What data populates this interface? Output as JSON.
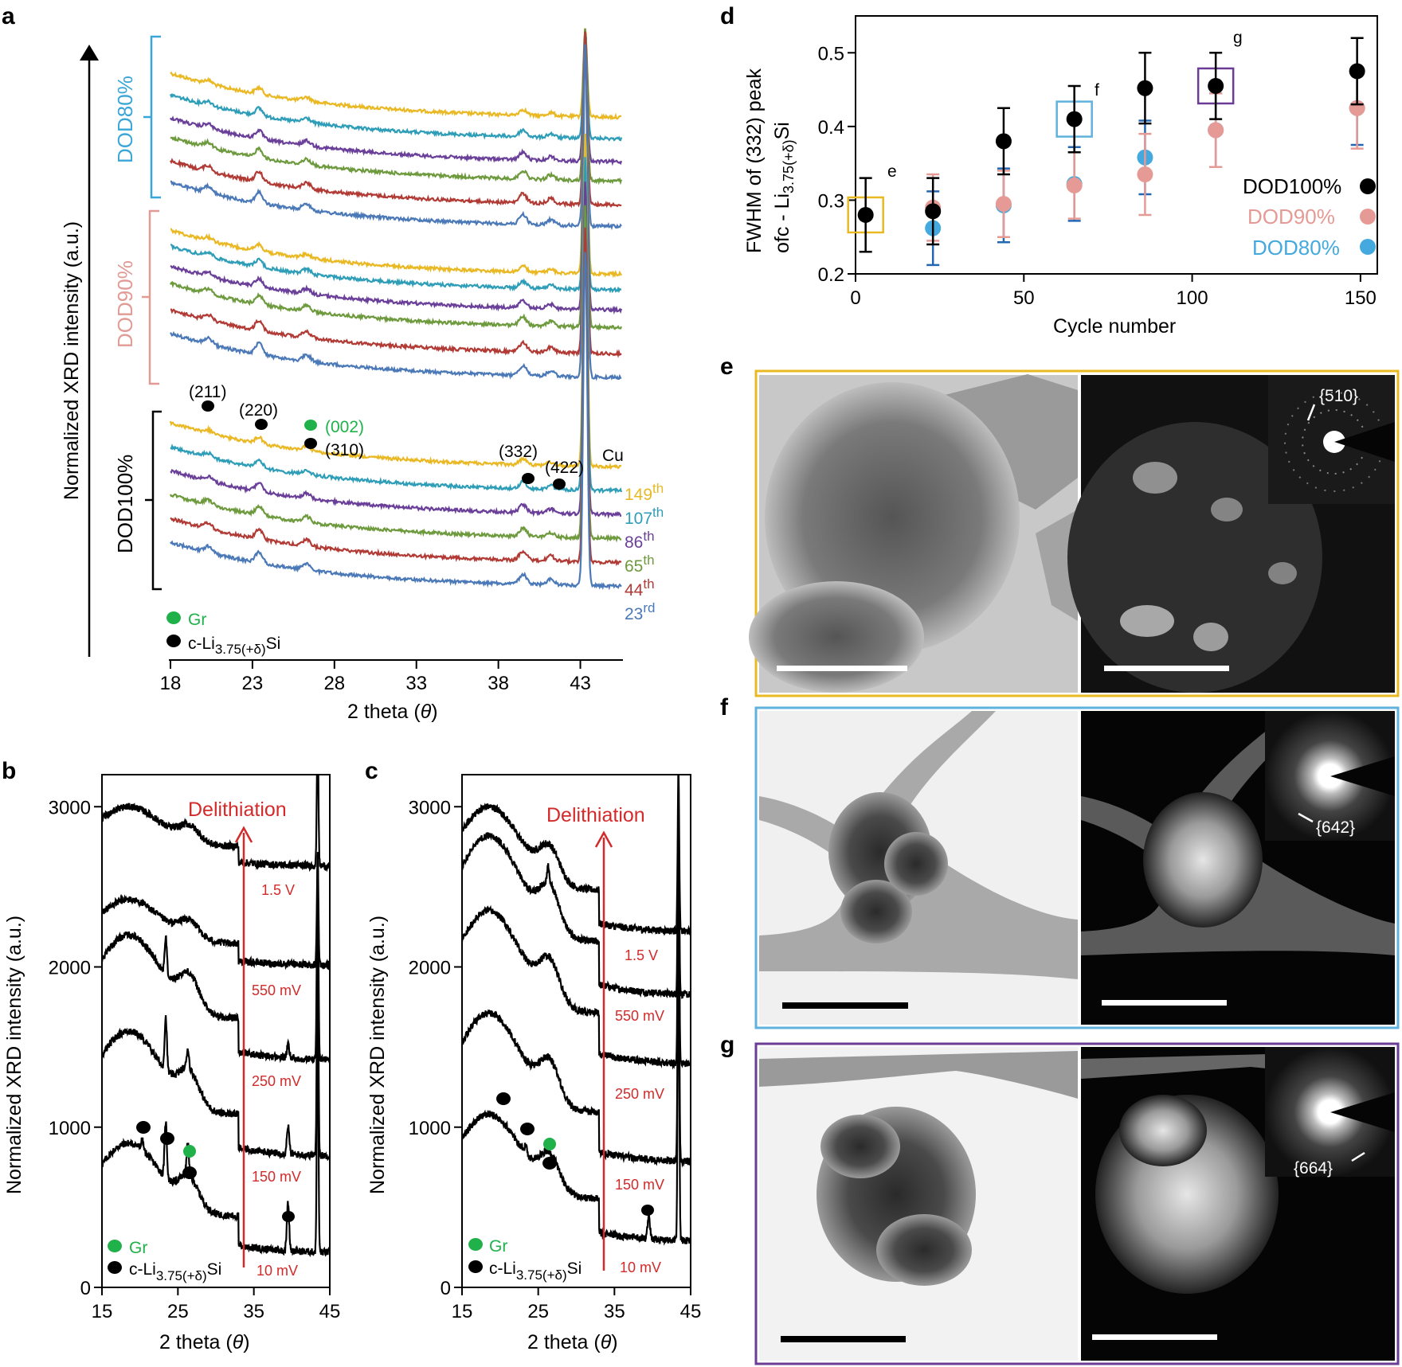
{
  "colors": {
    "yellow": "#e9b823",
    "teal": "#2e9db8",
    "purple": "#6a3f99",
    "green": "#6e9a3e",
    "red": "#b23a35",
    "blue": "#4b79b8",
    "black": "#000000",
    "pink": "#e59a95",
    "sky": "#43a9de",
    "gr_green": "#20b14a",
    "delith_red": "#d32a2a",
    "dod80_bracket": "#3aa6d8",
    "dod90_bracket": "#e29a95",
    "box_e": "#e8b923",
    "box_f": "#5fb2dd",
    "box_g": "#6a3c96",
    "errbar_blue": "#2367b2"
  },
  "panel_labels": {
    "a": "a",
    "b": "b",
    "c": "c",
    "d": "d",
    "e": "e",
    "f": "f",
    "g": "g"
  },
  "panel_a": {
    "ylabel": "Normalized XRD intensity (a.u.)",
    "xlabel_pre": "2 theta (",
    "xlabel_sym": "θ",
    "xlabel_post": ")",
    "bracket_labels": [
      "DOD80%",
      "DOD90%",
      "DOD100%"
    ],
    "peak_labels": [
      "(211)",
      "(220)",
      "(002)",
      "(310)",
      "(332)",
      "(422)",
      "Cu"
    ],
    "cycles": [
      {
        "num": "149",
        "sup": "th"
      },
      {
        "num": "107",
        "sup": "th"
      },
      {
        "num": "86",
        "sup": "th"
      },
      {
        "num": "65",
        "sup": "th"
      },
      {
        "num": "44",
        "sup": "th"
      },
      {
        "num": "23",
        "sup": "rd"
      }
    ],
    "legend": {
      "gr": "Gr",
      "li_prefix": "c-Li",
      "li_sub": "3.75(+δ)",
      "li_suffix": "Si"
    }
  },
  "panel_b": {
    "ylabel": "Normalized XRD intensity (a.u.)",
    "xlabel_pre": "2 theta (",
    "xlabel_sym": "θ",
    "xlabel_post": ")",
    "arrow_label": "Delithiation",
    "voltages": [
      "1.5 V",
      "550 mV",
      "250 mV",
      "150 mV",
      "10 mV"
    ],
    "legend": {
      "gr": "Gr",
      "li_prefix": "c-Li",
      "li_sub": "3.75(+δ)",
      "li_suffix": "Si"
    }
  },
  "panel_c": {
    "ylabel": "Normalized XRD intensity (a.u.)",
    "xlabel_pre": "2 theta (",
    "xlabel_sym": "θ",
    "xlabel_post": ")",
    "arrow_label": "Delithiation",
    "voltages": [
      "1.5 V",
      "550 mV",
      "250 mV",
      "150 mV",
      "10 mV"
    ],
    "legend": {
      "gr": "Gr",
      "li_prefix": "c-Li",
      "li_sub": "3.75(+δ)",
      "li_suffix": "Si"
    }
  },
  "panel_d": {
    "xlabel": "Cycle number",
    "ylabel_line1": "FWHM of (332) peak",
    "ylabel_line2_prefix": "ofc - Li",
    "ylabel_line2_sub": "3.75(+δ)",
    "ylabel_line2_suffix": "Si",
    "box_labels": [
      "e",
      "f",
      "g"
    ],
    "legend": [
      "DOD100%",
      "DOD90%",
      "DOD80%"
    ]
  },
  "micrographs": {
    "e_ring": "{510}",
    "f_ring": "{642}",
    "g_ring": "{664}"
  },
  "chart_data": [
    {
      "type": "line",
      "id": "a",
      "title": "",
      "xlabel": "2 theta (θ)",
      "ylabel": "Normalized XRD intensity (a.u.)",
      "xlim": [
        18,
        45.5
      ],
      "xticks": [
        18,
        23,
        28,
        33,
        38,
        43
      ],
      "series_note": "18 stacked XRD patterns, top to bottom: DOD80% (149,107,86,65,44,23), DOD90% (149,107,86,65,44,23), DOD100% (149,107,86,65,44,23)",
      "peaks_2theta": {
        "211": 20.3,
        "220": 23.4,
        "002_310": 26.3,
        "332": 39.5,
        "422": 41.2,
        "Cu": 43.3
      },
      "series": [
        {
          "name": "DOD80% 149th",
          "color": "yellow"
        },
        {
          "name": "DOD80% 107th",
          "color": "teal"
        },
        {
          "name": "DOD80% 86th",
          "color": "purple"
        },
        {
          "name": "DOD80% 65th",
          "color": "green"
        },
        {
          "name": "DOD80% 44th",
          "color": "red"
        },
        {
          "name": "DOD80% 23rd",
          "color": "blue"
        },
        {
          "name": "DOD90% 149th",
          "color": "yellow"
        },
        {
          "name": "DOD90% 107th",
          "color": "teal"
        },
        {
          "name": "DOD90% 86th",
          "color": "purple"
        },
        {
          "name": "DOD90% 65th",
          "color": "green"
        },
        {
          "name": "DOD90% 44th",
          "color": "red"
        },
        {
          "name": "DOD90% 23rd",
          "color": "blue"
        },
        {
          "name": "DOD100% 149th",
          "color": "yellow"
        },
        {
          "name": "DOD100% 107th",
          "color": "teal"
        },
        {
          "name": "DOD100% 86th",
          "color": "purple"
        },
        {
          "name": "DOD100% 65th",
          "color": "green"
        },
        {
          "name": "DOD100% 44th",
          "color": "red"
        },
        {
          "name": "DOD100% 23rd",
          "color": "blue"
        }
      ]
    },
    {
      "type": "line",
      "id": "b",
      "xlabel": "2 theta (θ)",
      "ylabel": "Normalized XRD intensity (a.u.)",
      "xlim": [
        15,
        45
      ],
      "ylim": [
        0,
        3200
      ],
      "xticks": [
        15,
        25,
        35,
        45
      ],
      "yticks": [
        0,
        1000,
        2000,
        3000
      ],
      "series": [
        {
          "name": "10 mV",
          "base": 200,
          "hump": 700,
          "sharp_peaks": [
            [
              20.3,
              60
            ],
            [
              23.4,
              350
            ],
            [
              26.3,
              200
            ],
            [
              39.5,
              300
            ],
            [
              43.4,
              1600
            ]
          ]
        },
        {
          "name": "150 mV",
          "base": 800,
          "hump": 800,
          "sharp_peaks": [
            [
              23.4,
              330
            ],
            [
              26.3,
              120
            ],
            [
              39.5,
              180
            ],
            [
              43.4,
              1500
            ]
          ]
        },
        {
          "name": "250 mV",
          "base": 1400,
          "hump": 800,
          "sharp_peaks": [
            [
              23.4,
              230
            ],
            [
              39.5,
              80
            ],
            [
              43.4,
              1300
            ]
          ]
        },
        {
          "name": "550 mV",
          "base": 2000,
          "hump": 420,
          "sharp_peaks": [
            [
              43.4,
              700
            ]
          ]
        },
        {
          "name": "1.5 V",
          "base": 2620,
          "hump": 380,
          "sharp_peaks": [
            [
              43.4,
              900
            ]
          ]
        }
      ]
    },
    {
      "type": "line",
      "id": "c",
      "xlabel": "2 theta (θ)",
      "ylabel": "Normalized XRD intensity (a.u.)",
      "xlim": [
        15,
        45
      ],
      "ylim": [
        0,
        3200
      ],
      "xticks": [
        15,
        25,
        35,
        45
      ],
      "yticks": [
        0,
        1000,
        2000,
        3000
      ],
      "series": [
        {
          "name": "10 mV",
          "base": 270,
          "hump": 810,
          "sharp_peaks": [
            [
              23.4,
              60
            ],
            [
              39.5,
              150
            ],
            [
              43.4,
              2100
            ]
          ]
        },
        {
          "name": "150 mV",
          "base": 760,
          "hump": 950,
          "sharp_peaks": [
            [
              43.4,
              1800
            ]
          ]
        },
        {
          "name": "250 mV",
          "base": 1370,
          "hump": 980,
          "sharp_peaks": [
            [
              43.4,
              1500
            ]
          ]
        },
        {
          "name": "550 mV",
          "base": 1800,
          "hump": 1020,
          "sharp_peaks": [
            [
              26.3,
              100
            ],
            [
              43.4,
              1200
            ]
          ]
        },
        {
          "name": "1.5 V",
          "base": 2200,
          "hump": 800,
          "sharp_peaks": [
            [
              43.4,
              1000
            ]
          ]
        }
      ]
    },
    {
      "type": "scatter",
      "id": "d",
      "xlabel": "Cycle number",
      "ylabel": "FWHM of (332) peak ofc - Li3.75(+δ)Si",
      "xlim": [
        0,
        155
      ],
      "ylim": [
        0.2,
        0.55
      ],
      "xticks": [
        0,
        50,
        100,
        150
      ],
      "yticks": [
        0.2,
        0.3,
        0.4,
        0.5
      ],
      "legend_position": "right",
      "series": [
        {
          "name": "DOD100%",
          "color": "black",
          "x": [
            3,
            23,
            44,
            65,
            86,
            107,
            149
          ],
          "y": [
            0.28,
            0.285,
            0.38,
            0.41,
            0.452,
            0.455,
            0.475
          ],
          "err": [
            0.05,
            0.045,
            0.045,
            0.045,
            0.048,
            0.045,
            0.045
          ]
        },
        {
          "name": "DOD90%",
          "color": "pink",
          "x": [
            23,
            44,
            65,
            86,
            107,
            149
          ],
          "y": [
            0.29,
            0.295,
            0.32,
            0.335,
            0.395,
            0.425
          ],
          "err": [
            0.045,
            0.045,
            0.045,
            0.055,
            0.05,
            0.055
          ]
        },
        {
          "name": "DOD80%",
          "color": "sky",
          "x": [
            23,
            44,
            65,
            86,
            107,
            149
          ],
          "y": [
            0.262,
            0.293,
            0.322,
            0.358,
            0.395,
            0.425
          ],
          "err": [
            0.05,
            0.05,
            0.05,
            0.05,
            0.05,
            0.05
          ]
        }
      ]
    }
  ]
}
